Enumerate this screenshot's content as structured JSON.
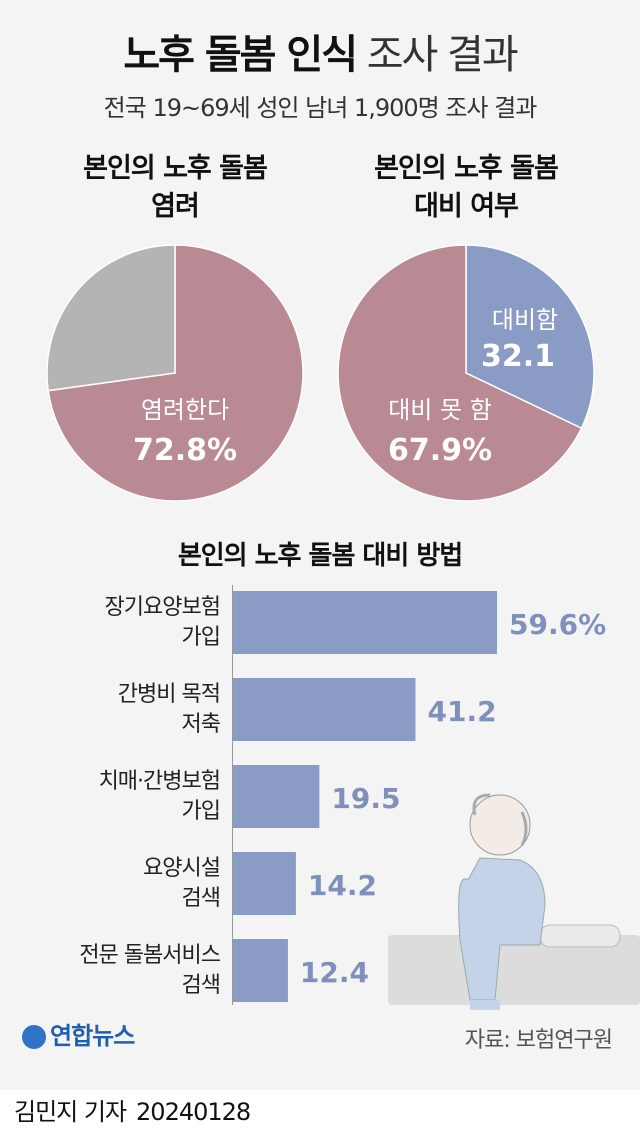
{
  "header": {
    "title_bold": "노후 돌봄 인식",
    "title_light": "조사 결과",
    "subtitle": "전국 19~69세 성인 남녀 1,900명 조사 결과"
  },
  "chart_data": [
    {
      "type": "pie",
      "title": [
        "본인의 노후 돌봄",
        "염려"
      ],
      "slices": [
        {
          "label": "염려한다",
          "value": 72.8,
          "display": "72.8%",
          "color": "#b98a93"
        },
        {
          "label": "",
          "value": 27.2,
          "color": "#b4b4b4"
        }
      ]
    },
    {
      "type": "pie",
      "title": [
        "본인의 노후 돌봄",
        "대비 여부"
      ],
      "slices": [
        {
          "label": "대비함",
          "value": 32.1,
          "display": "32.1",
          "color": "#8a9cc6"
        },
        {
          "label": "대비 못 함",
          "value": 67.9,
          "display": "67.9%",
          "color": "#b98a93"
        }
      ]
    },
    {
      "type": "bar",
      "orientation": "horizontal",
      "title": "본인의 노후 돌봄 대비 방법",
      "unit": "%",
      "color": "#8a9cc6",
      "categories": [
        [
          "장기요양보험",
          "가입"
        ],
        [
          "간병비 목적",
          "저축"
        ],
        [
          "치매·간병보험",
          "가입"
        ],
        [
          "요양시설",
          "검색"
        ],
        [
          "전문 돌봄서비스",
          "검색"
        ]
      ],
      "values": [
        59.6,
        41.2,
        19.5,
        14.2,
        12.4
      ],
      "labels": [
        "59.6%",
        "41.2",
        "19.5",
        "14.2",
        "12.4"
      ]
    }
  ],
  "footer": {
    "logo": "연합뉴스",
    "source": "자료: 보험연구원",
    "reporter": "김민지 기자",
    "date": "20240128"
  }
}
